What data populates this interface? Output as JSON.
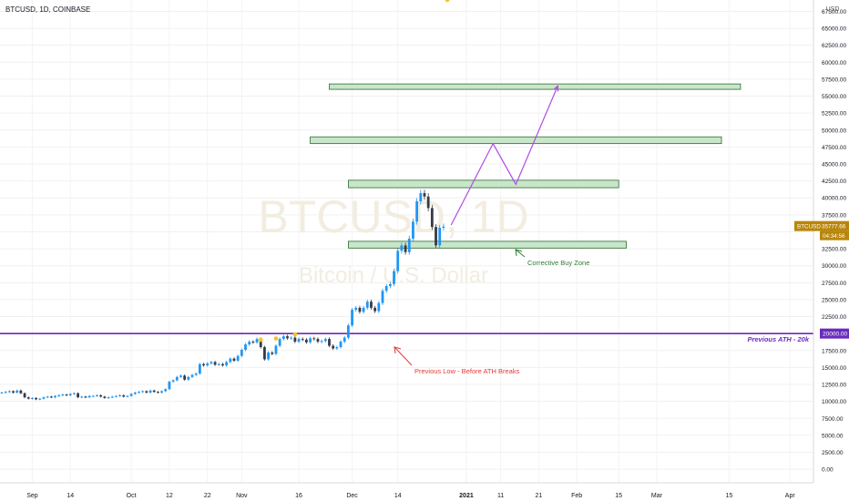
{
  "header": {
    "symbol_line": "BTCUSD, 1D, COINBASE"
  },
  "watermark": {
    "symbol": "BTCUSD, 1D",
    "description": "Bitcoin / U.S. Dollar"
  },
  "price_axis": {
    "currency": "USD",
    "current_price_label": "BTCUSD",
    "current_price": "35777.66",
    "countdown": "04:34:56",
    "level_label": "20000.00"
  },
  "colors": {
    "up": "#2196f3",
    "down": "#363a45",
    "projection": "#b14ce6",
    "ath_line": "#6a2bbf",
    "zone_fill": "#c8e6c9",
    "zone_stroke": "#2e6b2e",
    "price_tag": "#b8860b",
    "low_annotation": "#e53935",
    "buy_annotation": "#2e7d32"
  },
  "chart_data": {
    "type": "candlestick",
    "title": "BTCUSD, 1D, COINBASE",
    "y_axis": {
      "ticks": [
        "67500.00",
        "65000.00",
        "62500.00",
        "60000.00",
        "57500.00",
        "55000.00",
        "52500.00",
        "50000.00",
        "47500.00",
        "45000.00",
        "42500.00",
        "40000.00",
        "37500.00",
        "35000.00",
        "32500.00",
        "30000.00",
        "27500.00",
        "25000.00",
        "22500.00",
        "20000.00",
        "17500.00",
        "15000.00",
        "12500.00",
        "10000.00",
        "7500.00",
        "5000.00",
        "2500.00",
        "0.00"
      ],
      "range": [
        -2000,
        68500
      ]
    },
    "x_axis": {
      "ticks": [
        "Sep",
        "14",
        "Oct",
        "12",
        "22",
        "Nov",
        "16",
        "Dec",
        "14",
        "2021",
        "11",
        "21",
        "Feb",
        "15",
        "Mar",
        "15",
        "Apr"
      ]
    },
    "closes": [
      11300,
      11400,
      11500,
      11300,
      11600,
      11200,
      10600,
      10400,
      10500,
      10300,
      10400,
      10600,
      10700,
      10600,
      10800,
      10900,
      11000,
      10900,
      11100,
      11200,
      10600,
      10700,
      10600,
      10800,
      10800,
      10900,
      10700,
      10500,
      10600,
      10700,
      10800,
      10900,
      10700,
      10800,
      11100,
      11300,
      11400,
      11500,
      11300,
      11600,
      11400,
      11300,
      11500,
      11800,
      12900,
      13100,
      13600,
      13800,
      13200,
      13600,
      13900,
      14100,
      15500,
      15300,
      15600,
      15800,
      15400,
      15500,
      15300,
      15800,
      16300,
      16000,
      16700,
      17600,
      18400,
      18800,
      18700,
      19200,
      18000,
      16200,
      17200,
      17000,
      18200,
      19200,
      19600,
      19300,
      19400,
      18800,
      19200,
      19100,
      18700,
      19300,
      19200,
      18800,
      18900,
      19200,
      18200,
      17800,
      18000,
      18800,
      19400,
      21200,
      23500,
      23800,
      23200,
      23800,
      24700,
      23800,
      23300,
      24500,
      26300,
      27000,
      27300,
      29200,
      32200,
      33000,
      32000,
      34000,
      36500,
      39500,
      40700,
      40200,
      38500,
      35700,
      33000,
      35600,
      35777
    ],
    "markers": [
      {
        "shape": "circle",
        "color": "#f9c31f",
        "index": 68
      },
      {
        "shape": "circle",
        "color": "#f9c31f",
        "index": 72
      },
      {
        "shape": "circle",
        "color": "#f9c31f",
        "index": 77
      },
      {
        "shape": "circle",
        "color": "#f9c31f",
        "index": 117
      }
    ],
    "horizontal_line": {
      "price": 20000,
      "label": "Previous ATH - 20k"
    },
    "zones": [
      {
        "low": 32600,
        "high": 33600
      },
      {
        "low": 41500,
        "high": 42600
      },
      {
        "low": 48000,
        "high": 49000
      },
      {
        "low": 56000,
        "high": 56800
      }
    ],
    "projection_path": [
      {
        "x_index": 118,
        "price": 36000
      },
      {
        "x_index": 129,
        "price": 48000
      },
      {
        "x_index": 135,
        "price": 42000
      },
      {
        "x_index": 146,
        "price": 56500
      }
    ],
    "annotations": [
      {
        "text": "Previous Low - Before ATH Breaks",
        "color": "#e53935",
        "pointer_price": 17500
      },
      {
        "text": "Corrective Buy Zone",
        "color": "#2e7d32",
        "pointer_price": 31000
      }
    ]
  }
}
